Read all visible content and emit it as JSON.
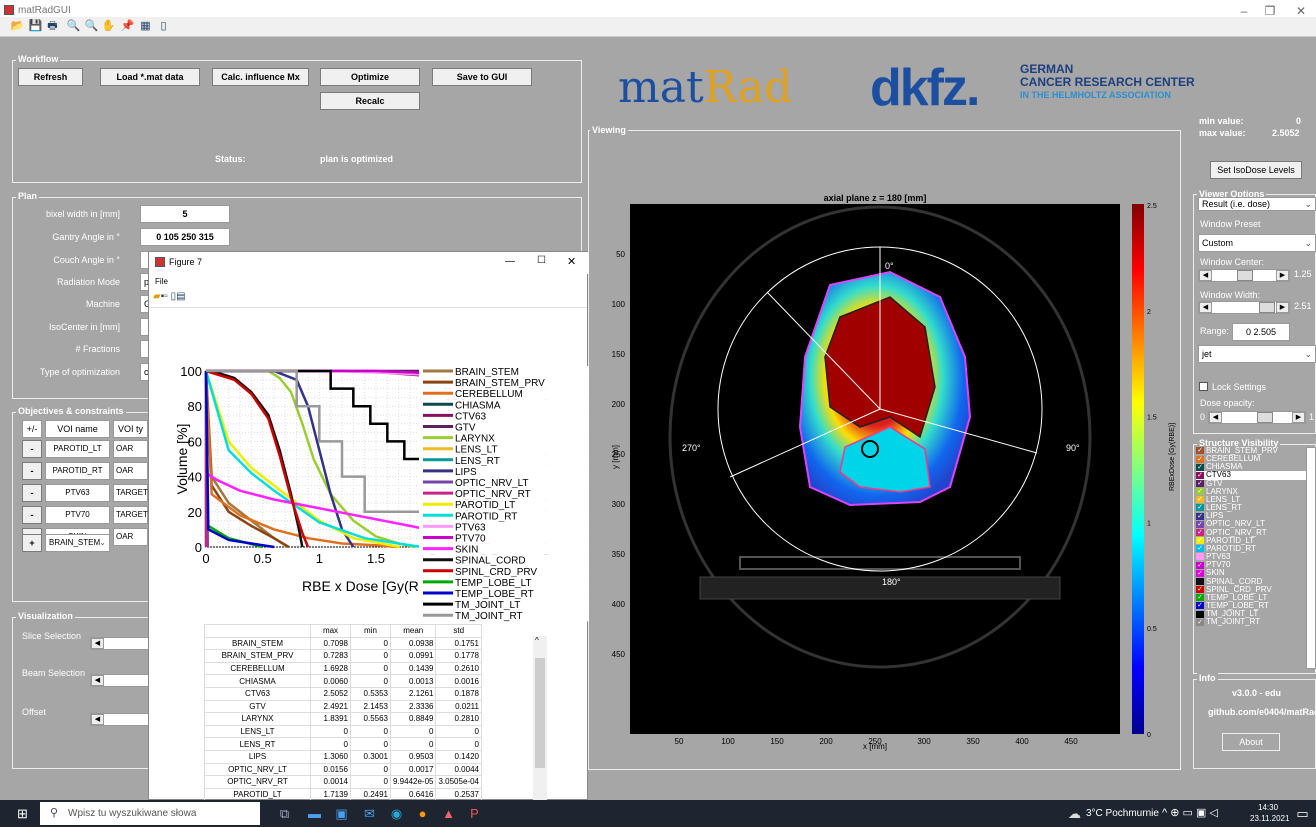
{
  "window": {
    "title": "matRadGUI",
    "min": "–",
    "restore": "❐",
    "close": "✕"
  },
  "toolbar": [
    "📂",
    "💾",
    "🖶",
    "🔍",
    "🔍",
    "✋",
    "📌",
    "▦",
    "▯"
  ],
  "workflow": {
    "title": "Workflow",
    "refresh": "Refresh",
    "load": "Load *.mat data",
    "calc": "Calc. influence Mx",
    "optimize": "Optimize",
    "save": "Save to GUI",
    "recalc": "Recalc",
    "status_label": "Status:",
    "status_value": "plan is optimized"
  },
  "plan": {
    "title": "Plan",
    "bixel_label": "bixel width in [mm]",
    "bixel_value": "5",
    "gantry_label": "Gantry Angle in °",
    "gantry_value": "0 105 250 315",
    "couch_label": "Couch Angle in °",
    "radmode_label": "Radiation Mode",
    "radmode_value": "p",
    "machine_label": "Machine",
    "machine_value": "G",
    "iso_label": "IsoCenter in [mm]",
    "fractions_label": "# Fractions",
    "opt_label": "Type of optimization",
    "opt_value": "c"
  },
  "objectives": {
    "title": "Objectives & constraints",
    "col_pm": "+/-",
    "col_voi": "VOI name",
    "col_type": "VOI ty",
    "rows": [
      {
        "pm": "-",
        "voi": "PAROTID_LT",
        "type": "OAR"
      },
      {
        "pm": "-",
        "voi": "PAROTID_RT",
        "type": "OAR"
      },
      {
        "pm": "-",
        "voi": "PTV63",
        "type": "TARGET"
      },
      {
        "pm": "-",
        "voi": "PTV70",
        "type": "TARGET"
      },
      {
        "pm": "-",
        "voi": "SKIN",
        "type": "OAR"
      }
    ],
    "add_pm": "+",
    "add_voi": "BRAIN_STEM"
  },
  "visualization": {
    "title": "Visualization",
    "slice": "Slice Selection",
    "beam": "Beam Selection",
    "offset": "Offset"
  },
  "logo": {
    "matrad_a": "mat",
    "matrad_b": "Rad",
    "dkfz": "dkfz.",
    "dkfz_line1": "GERMAN",
    "dkfz_line2": "CANCER RESEARCH CENTER",
    "dkfz_line3": "IN THE HELMHOLTZ ASSOCIATION"
  },
  "viewing": {
    "title": "Viewing",
    "plot_title": "axial plane z = 180 [mm]",
    "xlabel": "x [mm]",
    "ylabel": "y [mm]",
    "yticks": [
      "50",
      "100",
      "150",
      "200",
      "250",
      "300",
      "350",
      "400",
      "450"
    ],
    "xticks": [
      "50",
      "100",
      "150",
      "200",
      "250",
      "300",
      "350",
      "400",
      "450"
    ],
    "angles": {
      "top": "0°",
      "right": "90°",
      "bottom": "180°",
      "left": "270°"
    },
    "cbar_ticks": [
      "2.5",
      "2",
      "1.5",
      "1",
      "0.5",
      "0"
    ],
    "cbar_label": "RBExDose [Gy(RBE)]"
  },
  "minmax": {
    "min_label": "min value:",
    "min_value": "0",
    "max_label": "max value:",
    "max_value": "2.5052",
    "isodose": "Set IsoDose Levels"
  },
  "viewer": {
    "title": "Viewer Options",
    "type_value": "Result (i.e. dose)",
    "preset_label": "Window Preset",
    "preset_value": "Custom",
    "center_label": "Window Center:",
    "center_value": "1.25",
    "width_label": "Window Width:",
    "width_value": "2.51",
    "range_label": "Range:",
    "range_value": "0   2.505",
    "cmap_value": "jet",
    "lock_label": "Lock Settings",
    "opacity_label": "Dose opacity:",
    "opacity_min": "0",
    "opacity_max": "1"
  },
  "structures": {
    "title": "Structure Visibility",
    "items": [
      {
        "n": "BRAIN_STEM_PRV",
        "c": "#a0522d",
        "k": "✓"
      },
      {
        "n": "CEREBELLUM",
        "c": "#e07020",
        "k": "✓"
      },
      {
        "n": "CHIASMA",
        "c": "#0b4a4a",
        "k": "✓"
      },
      {
        "n": "CTV63",
        "c": "#8b1060",
        "k": "✓",
        "sel": true
      },
      {
        "n": "GTV",
        "c": "#5a2060",
        "k": "✓"
      },
      {
        "n": "LARYNX",
        "c": "#9acd32",
        "k": "✓"
      },
      {
        "n": "LENS_LT",
        "c": "#eebb22",
        "k": "✓"
      },
      {
        "n": "LENS_RT",
        "c": "#009999",
        "k": "✓"
      },
      {
        "n": "LIPS",
        "c": "#333388",
        "k": "✓"
      },
      {
        "n": "OPTIC_NRV_LT",
        "c": "#7744aa",
        "k": "✓"
      },
      {
        "n": "OPTIC_NRV_RT",
        "c": "#cc2288",
        "k": "✓"
      },
      {
        "n": "PAROTID_LT",
        "c": "#eeee00",
        "k": "✓"
      },
      {
        "n": "PAROTID_RT",
        "c": "#00bbee",
        "k": "✓"
      },
      {
        "n": "PTV63",
        "c": "#ff99ff",
        "k": ""
      },
      {
        "n": "PTV70",
        "c": "#cc00cc",
        "k": "✓"
      },
      {
        "n": "SKIN",
        "c": "#dd00dd",
        "k": "✓"
      },
      {
        "n": "SPINAL_CORD",
        "c": "#111111",
        "k": ""
      },
      {
        "n": "SPINL_CRD_PRV",
        "c": "#cc0000",
        "k": "✓"
      },
      {
        "n": "TEMP_LOBE_LT",
        "c": "#00aa00",
        "k": "✓"
      },
      {
        "n": "TEMP_LOBE_RT",
        "c": "#0000cc",
        "k": "✓"
      },
      {
        "n": "TM_JOINT_LT",
        "c": "#000000",
        "k": ""
      },
      {
        "n": "TM_JOINT_RT",
        "c": "#888888",
        "k": "✓"
      }
    ]
  },
  "info": {
    "title": "Info",
    "version": "v3.0.0 - edu",
    "github": "github.com/e0404/matRad",
    "about": "About"
  },
  "figure": {
    "title": "Figure 7",
    "menu_file": "File",
    "min": "—",
    "max": "☐",
    "close": "✕",
    "ylabel": "Volume [%]",
    "xlabel": "RBE x Dose [Gy(RBE)]",
    "yticks": [
      "0",
      "20",
      "40",
      "60",
      "80",
      "100"
    ],
    "xticks": [
      "0",
      "0.5",
      "1",
      "1.5",
      "2",
      "2.5",
      "3"
    ]
  },
  "chart_data": {
    "type": "line",
    "title": "",
    "xlabel": "RBE x Dose [Gy(RBE)]",
    "ylabel": "Volume [%]",
    "xlim": [
      0,
      3
    ],
    "ylim": [
      0,
      100
    ],
    "grid": "on",
    "legend": "right",
    "series": [
      {
        "name": "BRAIN_STEM",
        "color": "#a07840",
        "x": [
          0,
          0.05,
          0.2,
          0.4,
          0.5,
          0.6,
          0.7,
          0.71
        ],
        "y": [
          100,
          40,
          25,
          15,
          10,
          5,
          1,
          0
        ]
      },
      {
        "name": "BRAIN_STEM_PRV",
        "color": "#8b4513",
        "x": [
          0,
          0.05,
          0.2,
          0.4,
          0.6,
          0.73
        ],
        "y": [
          100,
          35,
          20,
          12,
          5,
          0
        ]
      },
      {
        "name": "CEREBELLUM",
        "color": "#e07020",
        "x": [
          0,
          0.05,
          0.3,
          0.6,
          0.9,
          1.2,
          1.5,
          1.69
        ],
        "y": [
          100,
          30,
          18,
          10,
          5,
          2,
          1,
          0
        ]
      },
      {
        "name": "CHIASMA",
        "color": "#0b4a4a",
        "x": [
          0,
          0.006
        ],
        "y": [
          100,
          0
        ]
      },
      {
        "name": "CTV63",
        "color": "#8b1060",
        "x": [
          0,
          1.2,
          1.6,
          1.8,
          2.0,
          2.1,
          2.2,
          2.3,
          2.5
        ],
        "y": [
          100,
          100,
          99,
          98,
          97,
          95,
          60,
          20,
          0
        ]
      },
      {
        "name": "GTV",
        "color": "#5a2060",
        "x": [
          0,
          2.15,
          2.2,
          2.25,
          2.3,
          2.4,
          2.49
        ],
        "y": [
          100,
          100,
          99,
          98,
          60,
          10,
          0
        ]
      },
      {
        "name": "LARYNX",
        "color": "#9acd32",
        "x": [
          0,
          0.55,
          0.65,
          0.75,
          0.85,
          0.95,
          1.1,
          1.3,
          1.5,
          1.7,
          1.84
        ],
        "y": [
          100,
          100,
          96,
          88,
          70,
          50,
          30,
          15,
          6,
          2,
          0
        ]
      },
      {
        "name": "LENS_LT",
        "color": "#eebb22",
        "x": [
          0,
          0
        ],
        "y": [
          100,
          0
        ]
      },
      {
        "name": "LENS_RT",
        "color": "#009999",
        "x": [
          0,
          0
        ],
        "y": [
          100,
          0
        ]
      },
      {
        "name": "LIPS",
        "color": "#333388",
        "x": [
          0,
          0.3,
          0.6,
          0.8,
          0.9,
          1.0,
          1.1,
          1.2,
          1.3
        ],
        "y": [
          100,
          100,
          100,
          95,
          80,
          55,
          30,
          10,
          0
        ]
      },
      {
        "name": "OPTIC_NRV_LT",
        "color": "#7744aa",
        "x": [
          0,
          0.0156
        ],
        "y": [
          100,
          0
        ]
      },
      {
        "name": "OPTIC_NRV_RT",
        "color": "#cc2288",
        "x": [
          0,
          0.0014
        ],
        "y": [
          100,
          0
        ]
      },
      {
        "name": "PAROTID_LT",
        "color": "#eeee00",
        "x": [
          0,
          0.2,
          0.4,
          0.6,
          0.8,
          1.0,
          1.3,
          1.71
        ],
        "y": [
          100,
          60,
          45,
          35,
          25,
          15,
          5,
          0
        ]
      },
      {
        "name": "PAROTID_RT",
        "color": "#00dddd",
        "x": [
          0,
          0.2,
          0.4,
          0.6,
          0.8,
          1.0,
          1.4,
          1.9
        ],
        "y": [
          100,
          55,
          42,
          32,
          23,
          14,
          5,
          0
        ]
      },
      {
        "name": "PTV63",
        "color": "#ff99ff",
        "x": [
          0,
          1.1,
          1.6,
          1.9,
          2.1,
          2.2,
          2.3,
          2.5
        ],
        "y": [
          100,
          100,
          99,
          98,
          95,
          80,
          30,
          0
        ]
      },
      {
        "name": "PTV70",
        "color": "#cc00cc",
        "x": [
          0,
          1.5,
          1.9,
          2.1,
          2.2,
          2.3,
          2.5
        ],
        "y": [
          100,
          100,
          99,
          97,
          85,
          40,
          0
        ]
      },
      {
        "name": "SKIN",
        "color": "#ff22ff",
        "x": [
          0,
          0.1,
          0.3,
          0.6,
          1.0,
          1.4,
          1.8,
          2.1,
          2.3,
          2.5
        ],
        "y": [
          42,
          38,
          32,
          27,
          22,
          17,
          12,
          8,
          4,
          0
        ]
      },
      {
        "name": "SPINAL_CORD",
        "color": "#111111",
        "x": [
          0,
          0.1,
          0.25,
          0.4,
          0.55,
          0.65,
          0.75,
          0.82,
          0.85
        ],
        "y": [
          100,
          99,
          96,
          88,
          75,
          55,
          30,
          10,
          0
        ]
      },
      {
        "name": "SPINL_CRD_PRV",
        "color": "#cc0000",
        "x": [
          0,
          0.1,
          0.25,
          0.4,
          0.55,
          0.65,
          0.75,
          0.85,
          0.9
        ],
        "y": [
          100,
          98,
          95,
          87,
          73,
          52,
          28,
          8,
          0
        ]
      },
      {
        "name": "TEMP_LOBE_LT",
        "color": "#00aa00",
        "x": [
          0,
          0.02,
          0.2,
          0.5
        ],
        "y": [
          100,
          12,
          5,
          0
        ]
      },
      {
        "name": "TEMP_LOBE_RT",
        "color": "#0000cc",
        "x": [
          0,
          0.02,
          0.2,
          0.6
        ],
        "y": [
          100,
          10,
          4,
          0
        ]
      },
      {
        "name": "TM_JOINT_LT",
        "color": "#000000",
        "x": [
          0,
          0.9,
          1.1,
          1.1,
          1.3,
          1.3,
          1.45,
          1.45,
          1.6,
          1.6,
          1.75,
          1.75,
          1.9,
          1.9,
          2.1,
          2.1,
          2.3,
          2.3
        ],
        "y": [
          100,
          100,
          100,
          90,
          90,
          80,
          80,
          70,
          70,
          60,
          60,
          50,
          50,
          40,
          40,
          30,
          30,
          0
        ]
      },
      {
        "name": "TM_JOINT_RT",
        "color": "#999999",
        "x": [
          0,
          0.8,
          0.8,
          1.0,
          1.0,
          1.2,
          1.2,
          1.4,
          1.4,
          1.9,
          1.9
        ],
        "y": [
          100,
          100,
          80,
          80,
          60,
          60,
          40,
          40,
          20,
          20,
          0
        ]
      }
    ]
  },
  "stats": {
    "headers": [
      "",
      "max",
      "min",
      "mean",
      "std"
    ],
    "rows": [
      [
        "BRAIN_STEM",
        "0.7098",
        "0",
        "0.0938",
        "0.1751"
      ],
      [
        "BRAIN_STEM_PRV",
        "0.7283",
        "0",
        "0.0991",
        "0.1778"
      ],
      [
        "CEREBELLUM",
        "1.6928",
        "0",
        "0.1439",
        "0.2610"
      ],
      [
        "CHIASMA",
        "0.0060",
        "0",
        "0.0013",
        "0.0016"
      ],
      [
        "CTV63",
        "2.5052",
        "0.5353",
        "2.1261",
        "0.1878"
      ],
      [
        "GTV",
        "2.4921",
        "2.1453",
        "2.3336",
        "0.0211"
      ],
      [
        "LARYNX",
        "1.8391",
        "0.5563",
        "0.8849",
        "0.2810"
      ],
      [
        "LENS_LT",
        "0",
        "0",
        "0",
        "0"
      ],
      [
        "LENS_RT",
        "0",
        "0",
        "0",
        "0"
      ],
      [
        "LIPS",
        "1.3060",
        "0.3001",
        "0.9503",
        "0.1420"
      ],
      [
        "OPTIC_NRV_LT",
        "0.0156",
        "0",
        "0.0017",
        "0.0044"
      ],
      [
        "OPTIC_NRV_RT",
        "0.0014",
        "0",
        "9.9442e-05",
        "3.0505e-04"
      ],
      [
        "PAROTID_LT",
        "1.7139",
        "0.2491",
        "0.6416",
        "0.2537"
      ]
    ]
  },
  "taskbar": {
    "search": "Wpisz tu wyszukiwane słowa",
    "weather": "3°C  Pochmurnie",
    "time": "14:30",
    "date": "23.11.2021"
  }
}
